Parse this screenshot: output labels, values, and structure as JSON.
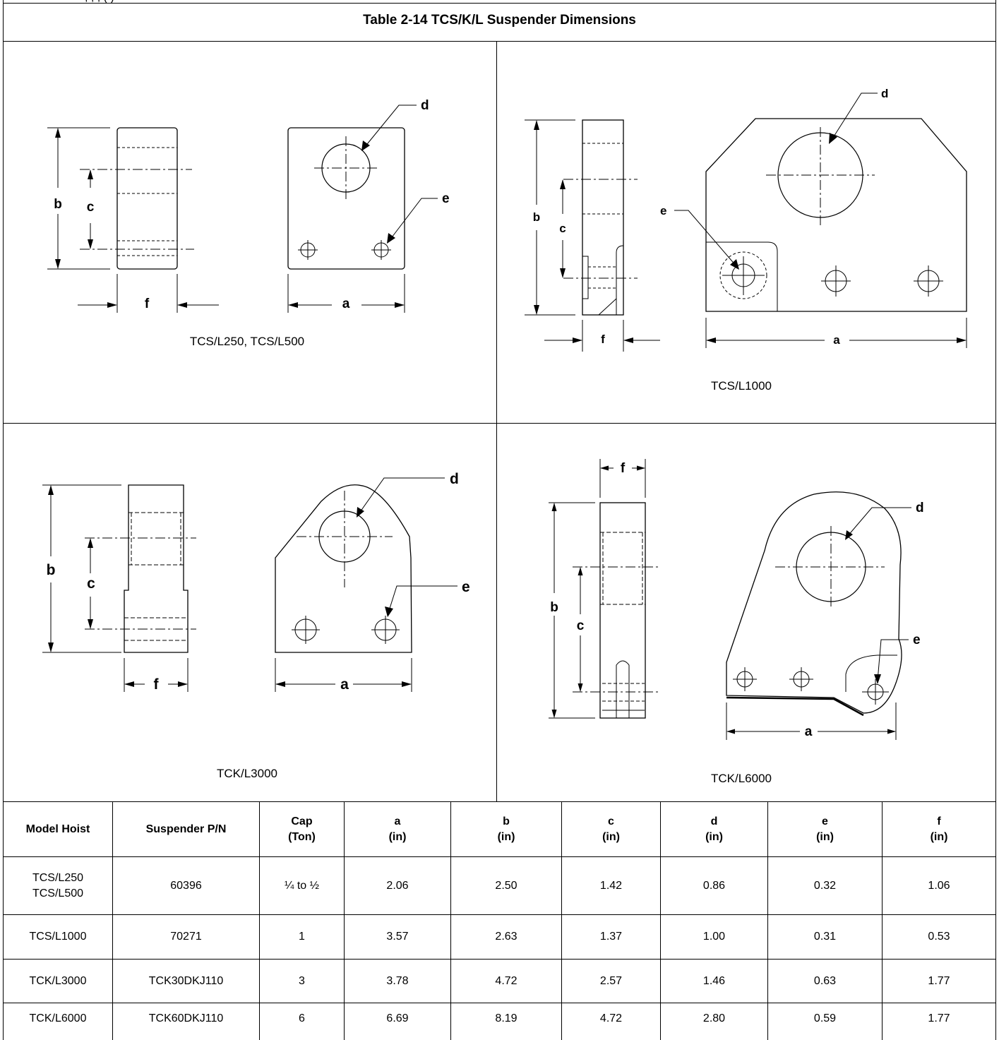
{
  "top_fragment": ", , ,                             ( )",
  "title": "Table 2-14 TCS/K/L Suspender Dimensions",
  "figures": {
    "fig1": {
      "caption": "TCS/L250, TCS/L500",
      "labels": {
        "a": "a",
        "b": "b",
        "c": "c",
        "d": "d",
        "e": "e",
        "f": "f"
      }
    },
    "fig2": {
      "caption": "TCS/L1000",
      "labels": {
        "a": "a",
        "b": "b",
        "c": "c",
        "d": "d",
        "e": "e",
        "f": "f"
      }
    },
    "fig3": {
      "caption": "TCK/L3000",
      "labels": {
        "a": "a",
        "b": "b",
        "c": "c",
        "d": "d",
        "e": "e",
        "f": "f"
      }
    },
    "fig4": {
      "caption": "TCK/L6000",
      "labels": {
        "a": "a",
        "b": "b",
        "c": "c",
        "d": "d",
        "e": "e",
        "f": "f"
      }
    }
  },
  "table": {
    "headers": [
      {
        "line1": "Model Hoist",
        "line2": ""
      },
      {
        "line1": "Suspender P/N",
        "line2": ""
      },
      {
        "line1": "Cap",
        "line2": "(Ton)"
      },
      {
        "line1": "a",
        "line2": "(in)"
      },
      {
        "line1": "b",
        "line2": "(in)"
      },
      {
        "line1": "c",
        "line2": "(in)"
      },
      {
        "line1": "d",
        "line2": "(in)"
      },
      {
        "line1": "e",
        "line2": "(in)"
      },
      {
        "line1": "f",
        "line2": "(in)"
      }
    ],
    "rows": [
      {
        "model_line1": "TCS/L250",
        "model_line2": "TCS/L500",
        "pn": "60396",
        "cap": "¼ to ½",
        "a": "2.06",
        "b": "2.50",
        "c": "1.42",
        "d": "0.86",
        "e": "0.32",
        "f": "1.06"
      },
      {
        "model_line1": "TCS/L1000",
        "model_line2": "",
        "pn": "70271",
        "cap": "1",
        "a": "3.57",
        "b": "2.63",
        "c": "1.37",
        "d": "1.00",
        "e": "0.31",
        "f": "0.53"
      },
      {
        "model_line1": "TCK/L3000",
        "model_line2": "",
        "pn": "TCK30DKJ110",
        "cap": "3",
        "a": "3.78",
        "b": "4.72",
        "c": "2.57",
        "d": "1.46",
        "e": "0.63",
        "f": "1.77"
      },
      {
        "model_line1": "TCK/L6000",
        "model_line2": "",
        "pn": "TCK60DKJ110",
        "cap": "6",
        "a": "6.69",
        "b": "8.19",
        "c": "4.72",
        "d": "2.80",
        "e": "0.59",
        "f": "1.77"
      }
    ]
  }
}
